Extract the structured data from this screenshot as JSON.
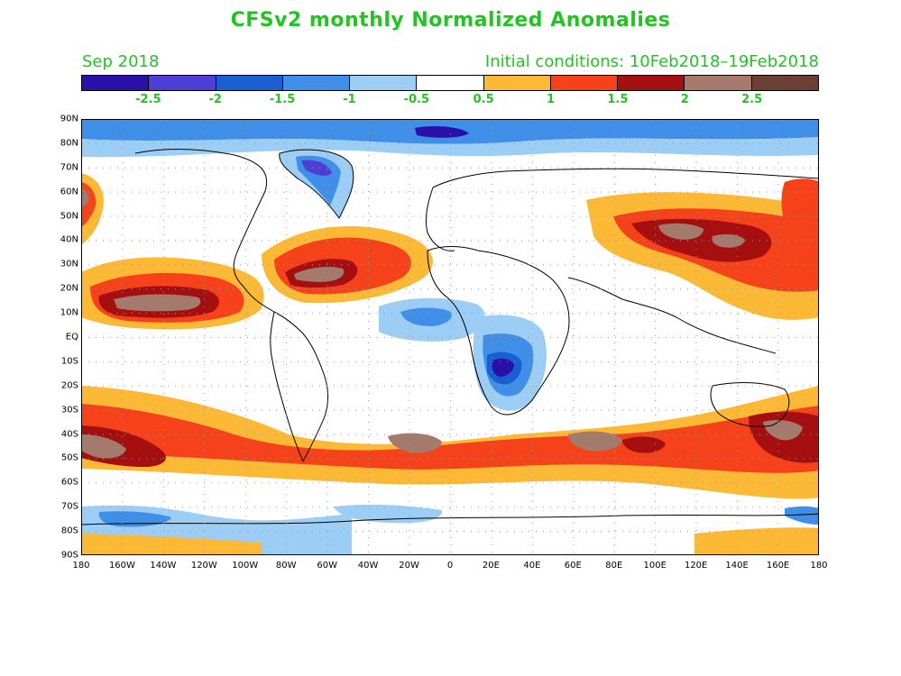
{
  "title": "CFSv2 monthly Normalized Anomalies",
  "subtitle_left": "Sep 2018",
  "subtitle_right": "Initial conditions: 10Feb2018–19Feb2018",
  "colors": {
    "title_text": "#22c422",
    "colorbar": [
      "#2a10a8",
      "#4d3fd6",
      "#1a5fd1",
      "#3f8fe8",
      "#9ccdf5",
      "#ffffff",
      "#fbb935",
      "#f5421a",
      "#a50f0f",
      "#a37a6c",
      "#6b3f34"
    ]
  },
  "colorbar_labels": [
    "-2.5",
    "-2",
    "-1.5",
    "-1",
    "-0.5",
    "0.5",
    "1",
    "1.5",
    "2",
    "2.5"
  ],
  "latitude_labels": [
    "90N",
    "80N",
    "70N",
    "60N",
    "50N",
    "40N",
    "30N",
    "20N",
    "10N",
    "EQ",
    "10S",
    "20S",
    "30S",
    "40S",
    "50S",
    "60S",
    "70S",
    "80S",
    "90S"
  ],
  "longitude_labels": [
    "180",
    "160W",
    "140W",
    "120W",
    "100W",
    "80W",
    "60W",
    "40W",
    "20W",
    "0",
    "20E",
    "40E",
    "60E",
    "80E",
    "100E",
    "120E",
    "140E",
    "160E",
    "180"
  ]
}
